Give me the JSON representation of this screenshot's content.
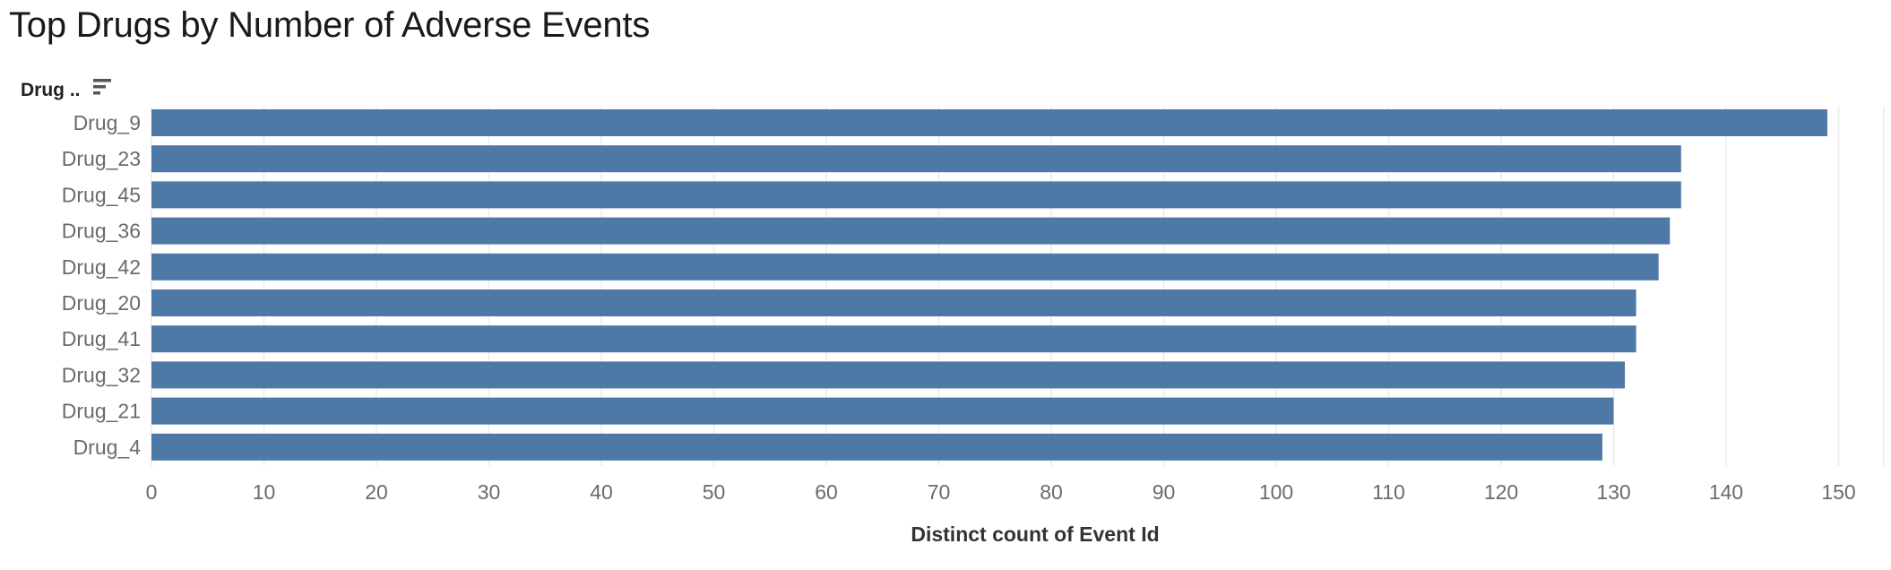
{
  "chart_data": {
    "type": "bar",
    "orientation": "horizontal",
    "title": "Top Drugs by Number of Adverse Events",
    "row_header": "Drug ..",
    "sort_icon": "sort-descending-icon",
    "xlabel": "Distinct count of Event Id",
    "ylabel": "",
    "categories": [
      "Drug_9",
      "Drug_23",
      "Drug_45",
      "Drug_36",
      "Drug_42",
      "Drug_20",
      "Drug_41",
      "Drug_32",
      "Drug_21",
      "Drug_4"
    ],
    "values": [
      149,
      136,
      136,
      135,
      134,
      132,
      132,
      131,
      130,
      129
    ],
    "xticks": [
      0,
      10,
      20,
      30,
      40,
      50,
      60,
      70,
      80,
      90,
      100,
      110,
      120,
      130,
      140,
      150
    ],
    "xlim": [
      0,
      154
    ],
    "grid": true,
    "bar_color": "#4e79a7"
  }
}
